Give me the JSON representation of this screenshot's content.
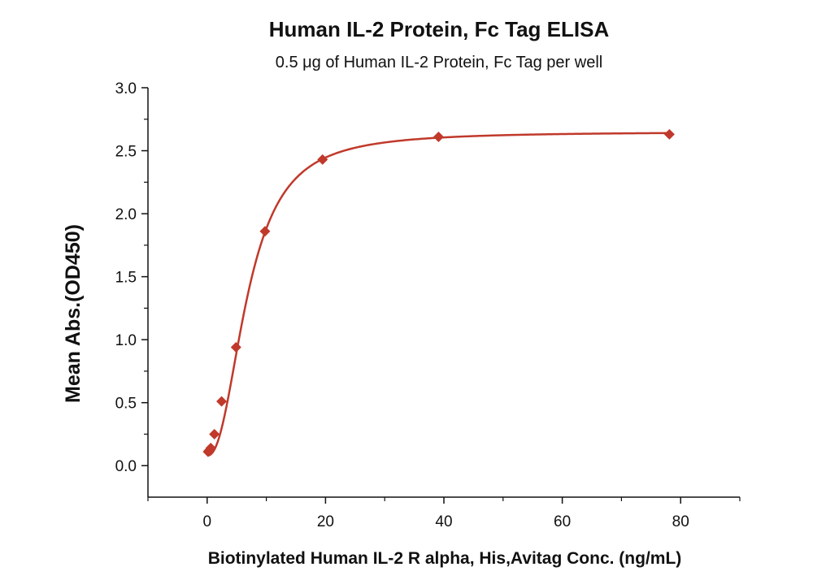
{
  "chart_data": {
    "type": "scatter",
    "title": "Human IL-2 Protein, Fc Tag ELISA",
    "subtitle": "0.5 μg of Human IL-2 Protein, Fc Tag per well",
    "xlabel": "Biotinylated Human IL-2 R alpha, His,Avitag Conc. (ng/mL)",
    "ylabel": "Mean Abs.(OD450)",
    "xlim": [
      -10,
      90
    ],
    "ylim": [
      -0.25,
      3.0
    ],
    "x_ticks": [
      0,
      20,
      40,
      60,
      80
    ],
    "y_ticks": [
      0.0,
      0.5,
      1.0,
      1.5,
      2.0,
      2.5,
      3.0
    ],
    "x_tick_labels": [
      "0",
      "20",
      "40",
      "60",
      "80"
    ],
    "y_tick_labels": [
      "0.0",
      "0.5",
      "1.0",
      "1.5",
      "2.0",
      "2.5",
      "3.0"
    ],
    "grid": false,
    "legend": "none",
    "colors": {
      "series": "#c0392b",
      "axis": "#111111"
    },
    "series": [
      {
        "marker": "diamond",
        "x": [
          0.15,
          0.3,
          0.61,
          1.22,
          2.44,
          4.88,
          9.77,
          19.5,
          39.1,
          78.1
        ],
        "y": [
          0.11,
          0.12,
          0.14,
          0.25,
          0.51,
          0.94,
          1.86,
          2.43,
          2.61,
          2.63
        ]
      }
    ],
    "fit_curve": {
      "type": "4PL",
      "bottom": 0.08,
      "top": 2.65,
      "ec50": 6.9,
      "hill": 2.3
    }
  }
}
